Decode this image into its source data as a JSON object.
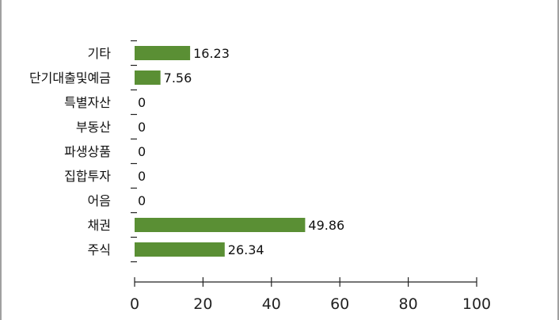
{
  "chart_data": {
    "type": "bar",
    "orientation": "horizontal",
    "title": "",
    "categories": [
      "기타",
      "단기대출및예금",
      "특별자산",
      "부동산",
      "파생상품",
      "집합투자",
      "어음",
      "채권",
      "주식"
    ],
    "values": [
      16.23,
      7.56,
      0,
      0,
      0,
      0,
      0,
      49.86,
      26.34
    ],
    "value_labels": [
      "16.23",
      "7.56",
      "0",
      "0",
      "0",
      "0",
      "0",
      "49.86",
      "26.34"
    ],
    "xlim": [
      0,
      100
    ],
    "x_ticks": [
      0,
      20,
      40,
      60,
      80,
      100
    ],
    "x_tick_labels": [
      "0",
      "20",
      "40",
      "60",
      "80",
      "100"
    ],
    "xlabel": "",
    "ylabel": "",
    "grid": false,
    "legend": "none",
    "bar_color": "#5a8f34"
  }
}
